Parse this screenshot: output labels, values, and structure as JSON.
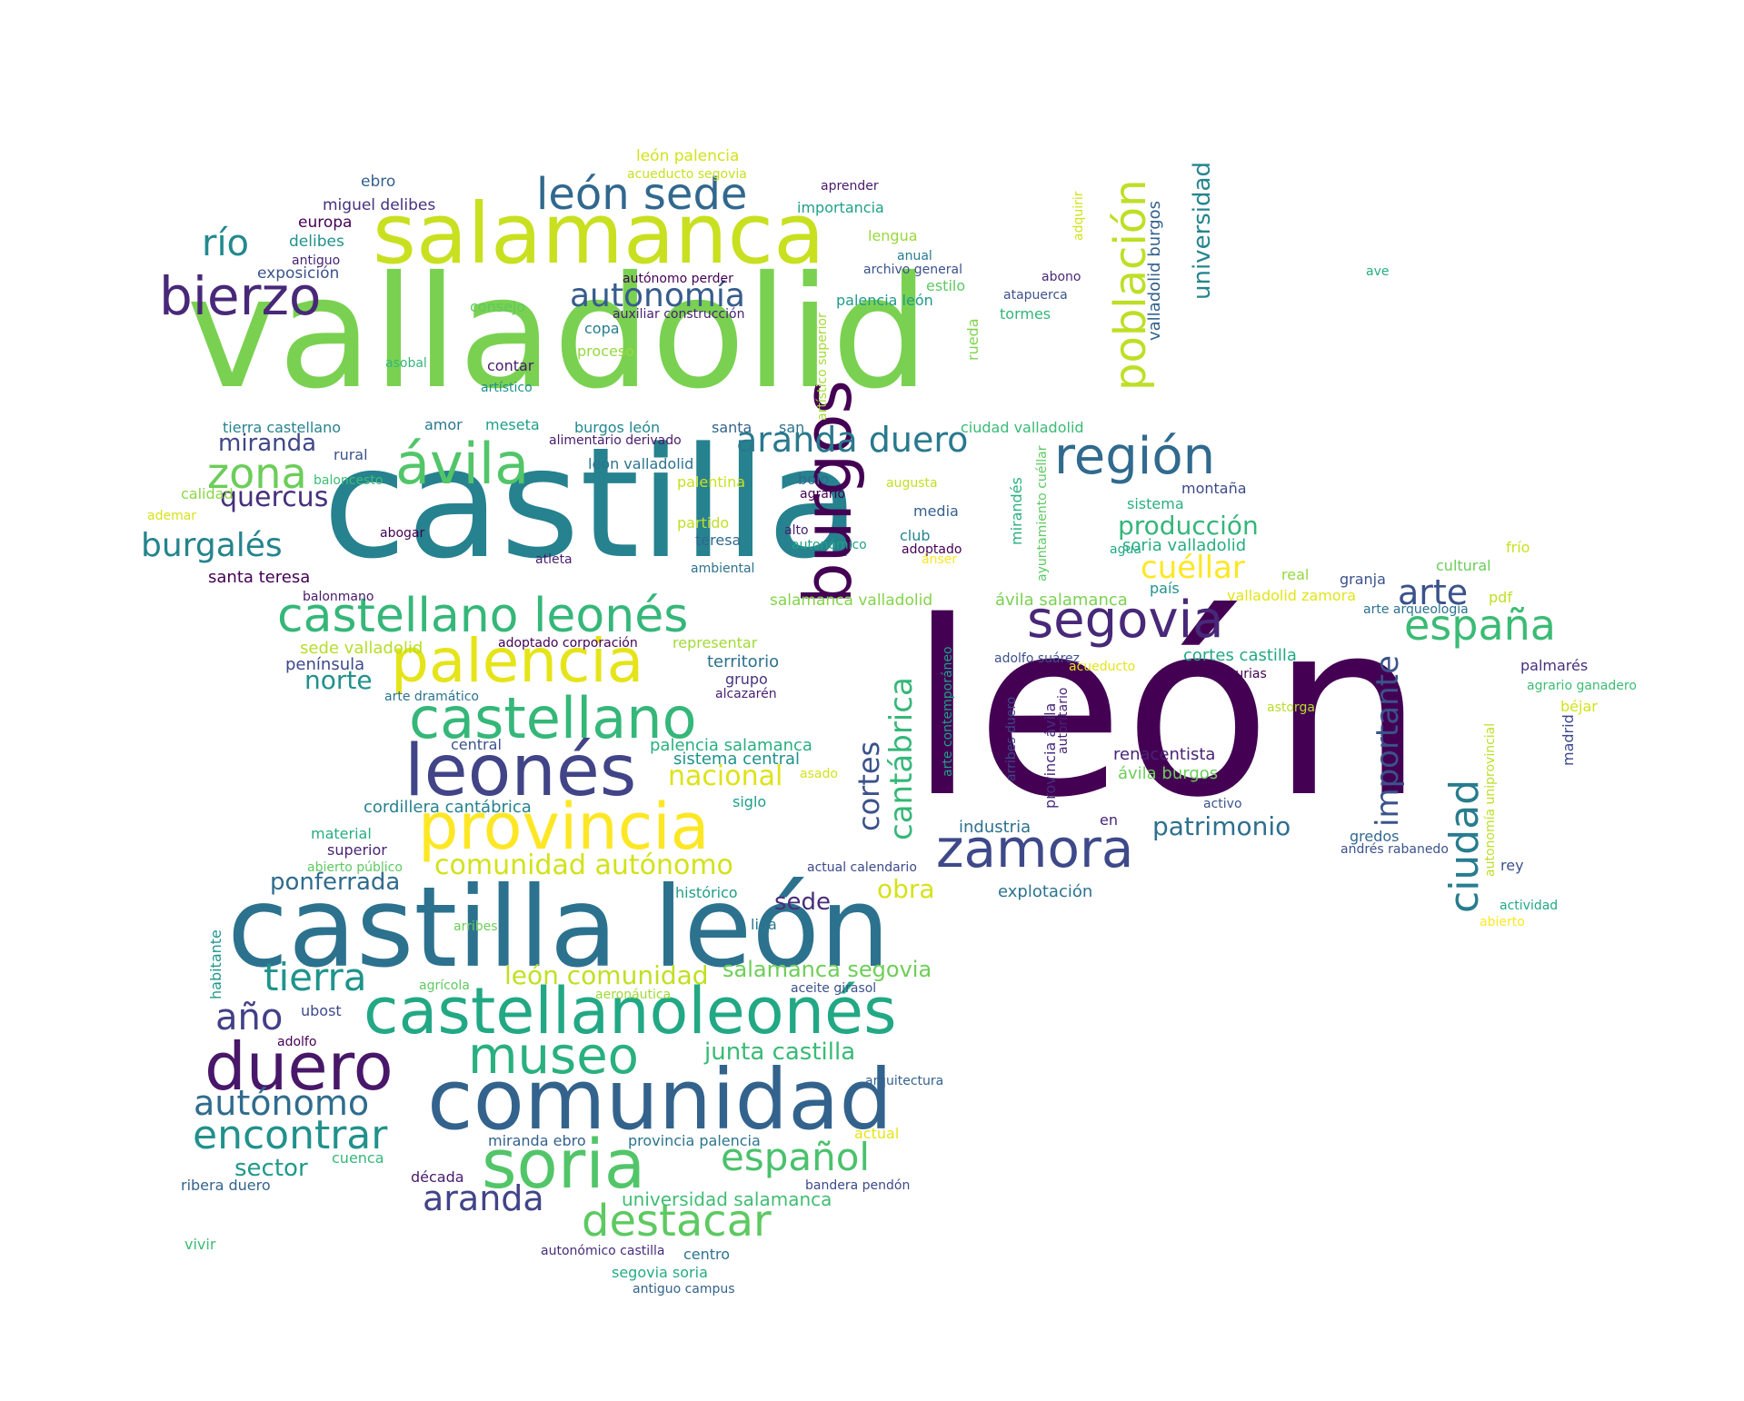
{
  "words": [
    {
      "text": "valladolid",
      "color": "#7ad151"
    },
    {
      "text": "castilla",
      "color": "#26828e"
    },
    {
      "text": "león",
      "color": "#440154"
    },
    {
      "text": "castilla león",
      "color": "#2c728e"
    },
    {
      "text": "salamanca",
      "color": "#c8e020"
    },
    {
      "text": "comunidad",
      "color": "#33638d"
    },
    {
      "text": "castellanoleonés",
      "color": "#22a884"
    },
    {
      "text": "provincia",
      "color": "#fde725"
    },
    {
      "text": "palencia",
      "color": "#e5e419"
    },
    {
      "text": "leonés",
      "color": "#414487"
    },
    {
      "text": "castellano",
      "color": "#35b779"
    },
    {
      "text": "duero",
      "color": "#481769"
    },
    {
      "text": "burgos",
      "color": "#440154"
    },
    {
      "text": "castellano leonés",
      "color": "#35b779"
    },
    {
      "text": "ávila",
      "color": "#52c569"
    },
    {
      "text": "segovia",
      "color": "#482878"
    },
    {
      "text": "zamora",
      "color": "#3e4989"
    },
    {
      "text": "soria",
      "color": "#52c569"
    },
    {
      "text": "museo",
      "color": "#2ab07f"
    },
    {
      "text": "bierzo",
      "color": "#482878"
    },
    {
      "text": "región",
      "color": "#306a8e"
    },
    {
      "text": "población",
      "color": "#bddf26"
    },
    {
      "text": "destacar",
      "color": "#5ec962"
    },
    {
      "text": "españa",
      "color": "#3bbb75"
    },
    {
      "text": "ciudad",
      "color": "#287c8e"
    },
    {
      "text": "tierra",
      "color": "#1f948c"
    },
    {
      "text": "encontrar",
      "color": "#21918c"
    },
    {
      "text": "zona",
      "color": "#6ccd5a"
    },
    {
      "text": "león sede",
      "color": "#31688e"
    },
    {
      "text": "aranda duero",
      "color": "#29798e"
    },
    {
      "text": "español",
      "color": "#4ac16d"
    },
    {
      "text": "importante",
      "color": "#3b528b"
    },
    {
      "text": "arte",
      "color": "#3b528b"
    },
    {
      "text": "autónomo",
      "color": "#2f6c8e"
    },
    {
      "text": "cantábrica",
      "color": "#35b779"
    },
    {
      "text": "aranda",
      "color": "#414487"
    },
    {
      "text": "autonomía",
      "color": "#365c8d"
    },
    {
      "text": "río",
      "color": "#23898e"
    },
    {
      "text": "año",
      "color": "#424086"
    },
    {
      "text": "burgalés",
      "color": "#25848e"
    },
    {
      "text": "cortes",
      "color": "#3b528b"
    },
    {
      "text": "comunidad autónomo",
      "color": "#d2e21b"
    },
    {
      "text": "cuéllar",
      "color": "#fde725"
    },
    {
      "text": "junta castilla",
      "color": "#3aba76"
    },
    {
      "text": "patrimonio",
      "color": "#2d708e"
    },
    {
      "text": "universidad",
      "color": "#25858e"
    },
    {
      "text": "león comunidad",
      "color": "#c2df23"
    },
    {
      "text": "salamanca segovia",
      "color": "#6ece58"
    },
    {
      "text": "producción",
      "color": "#34b679"
    },
    {
      "text": "nacional",
      "color": "#dde318"
    },
    {
      "text": "quercus",
      "color": "#46307e"
    },
    {
      "text": "norte",
      "color": "#21918c"
    },
    {
      "text": "ponferrada",
      "color": "#2f6c8e"
    },
    {
      "text": "miranda",
      "color": "#3f4788"
    },
    {
      "text": "obra",
      "color": "#d5e21a"
    },
    {
      "text": "sede",
      "color": "#472d7b"
    },
    {
      "text": "sector",
      "color": "#1f9a8a"
    },
    {
      "text": "universidad salamanca",
      "color": "#40bd72"
    },
    {
      "text": "valladolid burgos",
      "color": "#33628d"
    },
    {
      "text": "santa teresa",
      "color": "#440154"
    },
    {
      "text": "palencia salamanca",
      "color": "#29af7f"
    },
    {
      "text": "sistema central",
      "color": "#20928c"
    },
    {
      "text": "cordillera cantábrica",
      "color": "#26818e"
    },
    {
      "text": "explotación",
      "color": "#2c738e"
    },
    {
      "text": "industria",
      "color": "#2d708e"
    },
    {
      "text": "ávila burgos",
      "color": "#6ccd5a"
    },
    {
      "text": "renacentista",
      "color": "#482475"
    },
    {
      "text": "soria valladolid",
      "color": "#27ad81"
    },
    {
      "text": "ávila salamanca",
      "color": "#7ad151"
    },
    {
      "text": "cortes castilla",
      "color": "#22a884"
    },
    {
      "text": "salamanca valladolid",
      "color": "#84d44b"
    },
    {
      "text": "valladolid zamora",
      "color": "#e2e418"
    },
    {
      "text": "territorio",
      "color": "#2d708e"
    },
    {
      "text": "sede valladolid",
      "color": "#b5de2b"
    },
    {
      "text": "representar",
      "color": "#a2da37"
    },
    {
      "text": "península",
      "color": "#3e4989"
    },
    {
      "text": "grupo",
      "color": "#463480"
    },
    {
      "text": "miguel delibes",
      "color": "#46307e"
    },
    {
      "text": "importancia",
      "color": "#1fa187"
    },
    {
      "text": "ebro",
      "color": "#355f8d"
    },
    {
      "text": "europa",
      "color": "#440154"
    },
    {
      "text": "delibes",
      "color": "#20928c"
    },
    {
      "text": "exposición",
      "color": "#3b528b"
    },
    {
      "text": "consejo",
      "color": "#5ec962"
    },
    {
      "text": "copa",
      "color": "#287c8e"
    },
    {
      "text": "proceso",
      "color": "#95d840"
    },
    {
      "text": "contar",
      "color": "#481a6c"
    },
    {
      "text": "tierra castellano",
      "color": "#26828e"
    },
    {
      "text": "amor",
      "color": "#2a788e"
    },
    {
      "text": "meseta",
      "color": "#1f9e89"
    },
    {
      "text": "burgos león",
      "color": "#23888e"
    },
    {
      "text": "santa",
      "color": "#33638d"
    },
    {
      "text": "san",
      "color": "#2c728e"
    },
    {
      "text": "ciudad valladolid",
      "color": "#3aba76"
    },
    {
      "text": "rural",
      "color": "#3b528b"
    },
    {
      "text": "león valladolid",
      "color": "#2c738e"
    },
    {
      "text": "bolo",
      "color": "#31688e"
    },
    {
      "text": "media",
      "color": "#355f8d"
    },
    {
      "text": "teresa",
      "color": "#31688e"
    },
    {
      "text": "club",
      "color": "#25848e"
    },
    {
      "text": "montaña",
      "color": "#3e4a89"
    },
    {
      "text": "sistema",
      "color": "#2ab07f"
    },
    {
      "text": "granja",
      "color": "#3b528b"
    },
    {
      "text": "país",
      "color": "#21918c"
    },
    {
      "text": "real",
      "color": "#93d741"
    },
    {
      "text": "cultural",
      "color": "#6ccd5a"
    },
    {
      "text": "frío",
      "color": "#cae11f"
    },
    {
      "text": "pdf",
      "color": "#c0df25"
    },
    {
      "text": "palmarés",
      "color": "#472f7d"
    },
    {
      "text": "béjar",
      "color": "#d2e21b"
    },
    {
      "text": "madrid",
      "color": "#3e4989"
    },
    {
      "text": "rey",
      "color": "#3b528b"
    },
    {
      "text": "gredos",
      "color": "#31688e"
    },
    {
      "text": "en",
      "color": "#482475"
    },
    {
      "text": "siglo",
      "color": "#1f9e89"
    },
    {
      "text": "liga",
      "color": "#2a788e"
    },
    {
      "text": "histórico",
      "color": "#1f9e89"
    },
    {
      "text": "material",
      "color": "#27ad81"
    },
    {
      "text": "superior",
      "color": "#482475"
    },
    {
      "text": "central",
      "color": "#3b528b"
    },
    {
      "text": "ribera duero",
      "color": "#33638d"
    },
    {
      "text": "década",
      "color": "#481a6c"
    },
    {
      "text": "cuenca",
      "color": "#35b779"
    },
    {
      "text": "miranda ebro",
      "color": "#34618d"
    },
    {
      "text": "provincia palencia",
      "color": "#2b748e"
    },
    {
      "text": "centro",
      "color": "#2c728e"
    },
    {
      "text": "segovia soria",
      "color": "#25ab82"
    },
    {
      "text": "ubost",
      "color": "#3e4a89"
    },
    {
      "text": "habitante",
      "color": "#1f968b"
    },
    {
      "text": "vivir",
      "color": "#3dbc74"
    },
    {
      "text": "lengua",
      "color": "#99d83d"
    },
    {
      "text": "estilo",
      "color": "#5ec962"
    },
    {
      "text": "tormes",
      "color": "#34b679"
    },
    {
      "text": "rueda",
      "color": "#7fd34e"
    },
    {
      "text": "palencia león",
      "color": "#1f9a8a"
    },
    {
      "text": "mirandés",
      "color": "#2ab07f"
    },
    {
      "text": "alto",
      "color": "#481f70"
    },
    {
      "text": "palentina",
      "color": "#cae11f"
    },
    {
      "text": "partido",
      "color": "#c0df25"
    },
    {
      "text": "arribes",
      "color": "#6ccd5a"
    },
    {
      "text": "agrícola",
      "color": "#5ec962"
    },
    {
      "text": "astorga",
      "color": "#b8de29"
    },
    {
      "text": "león palencia",
      "color": "#d2e21b"
    },
    {
      "text": "acueducto segovia",
      "color": "#c8e020"
    },
    {
      "text": "aprender",
      "color": "#481a6c"
    },
    {
      "text": "autónomo perder",
      "color": "#440154"
    },
    {
      "text": "auxiliar construcción",
      "color": "#482173"
    },
    {
      "text": "anual",
      "color": "#287c8e"
    },
    {
      "text": "archivo general",
      "color": "#3b528b"
    },
    {
      "text": "abono",
      "color": "#482878"
    },
    {
      "text": "atapuerca",
      "color": "#3b528b"
    },
    {
      "text": "ave",
      "color": "#27ad81"
    },
    {
      "text": "adquirir",
      "color": "#d2e21b"
    },
    {
      "text": "artístico superior",
      "color": "#a5db36"
    },
    {
      "text": "asobal",
      "color": "#35b779"
    },
    {
      "text": "artístico",
      "color": "#21918c"
    },
    {
      "text": "antiguo",
      "color": "#482475"
    },
    {
      "text": "alimentario derivado",
      "color": "#481a6c"
    },
    {
      "text": "baloncesto",
      "color": "#3dbc74"
    },
    {
      "text": "agrario",
      "color": "#440154"
    },
    {
      "text": "augusta",
      "color": "#c2df23"
    },
    {
      "text": "ademar",
      "color": "#d8e219"
    },
    {
      "text": "calidad",
      "color": "#8bd646"
    },
    {
      "text": "abogar",
      "color": "#440154"
    },
    {
      "text": "atleta",
      "color": "#481f70"
    },
    {
      "text": "ambiental",
      "color": "#2c728e"
    },
    {
      "text": "autonómico",
      "color": "#1fa187"
    },
    {
      "text": "adoptado",
      "color": "#440154"
    },
    {
      "text": "ánser",
      "color": "#fde725"
    },
    {
      "text": "agua",
      "color": "#22a884"
    },
    {
      "text": "ayuntamiento cuéllar",
      "color": "#5ec962"
    },
    {
      "text": "balonmano",
      "color": "#481a6c"
    },
    {
      "text": "adoptado corporación",
      "color": "#440154"
    },
    {
      "text": "arte dramático",
      "color": "#2c728e"
    },
    {
      "text": "alcazarén",
      "color": "#482173"
    },
    {
      "text": "arte contemporáneo",
      "color": "#1fa187"
    },
    {
      "text": "adolfo suárez",
      "color": "#3b528b"
    },
    {
      "text": "acueducto",
      "color": "#e5e419"
    },
    {
      "text": "arribes duero",
      "color": "#3f4788"
    },
    {
      "text": "provincia ávila",
      "color": "#472d7b"
    },
    {
      "text": "autoritario",
      "color": "#482475"
    },
    {
      "text": "asturias",
      "color": "#440154"
    },
    {
      "text": "arte arqueología",
      "color": "#2c728e"
    },
    {
      "text": "agrario ganadero",
      "color": "#3dbc74"
    },
    {
      "text": "autonomía uniprovincial",
      "color": "#bddf26"
    },
    {
      "text": "asado",
      "color": "#d5e21a"
    },
    {
      "text": "activo",
      "color": "#3b528b"
    },
    {
      "text": "andrés rabanedo",
      "color": "#3b528b"
    },
    {
      "text": "actual calendario",
      "color": "#3e4989"
    },
    {
      "text": "abierto público",
      "color": "#5ec962"
    },
    {
      "text": "actividad",
      "color": "#22a884"
    },
    {
      "text": "abierto",
      "color": "#fde725"
    },
    {
      "text": "aeronáutica",
      "color": "#a0da39"
    },
    {
      "text": "aceite girasol",
      "color": "#3b528b"
    },
    {
      "text": "adolfo",
      "color": "#440154"
    },
    {
      "text": "arquitectura",
      "color": "#34618d"
    },
    {
      "text": "actual",
      "color": "#e5e419"
    },
    {
      "text": "bandera pendón",
      "color": "#3e4989"
    },
    {
      "text": "autonómico castilla",
      "color": "#472d7b"
    },
    {
      "text": "antiguo campus",
      "color": "#33638d"
    }
  ]
}
